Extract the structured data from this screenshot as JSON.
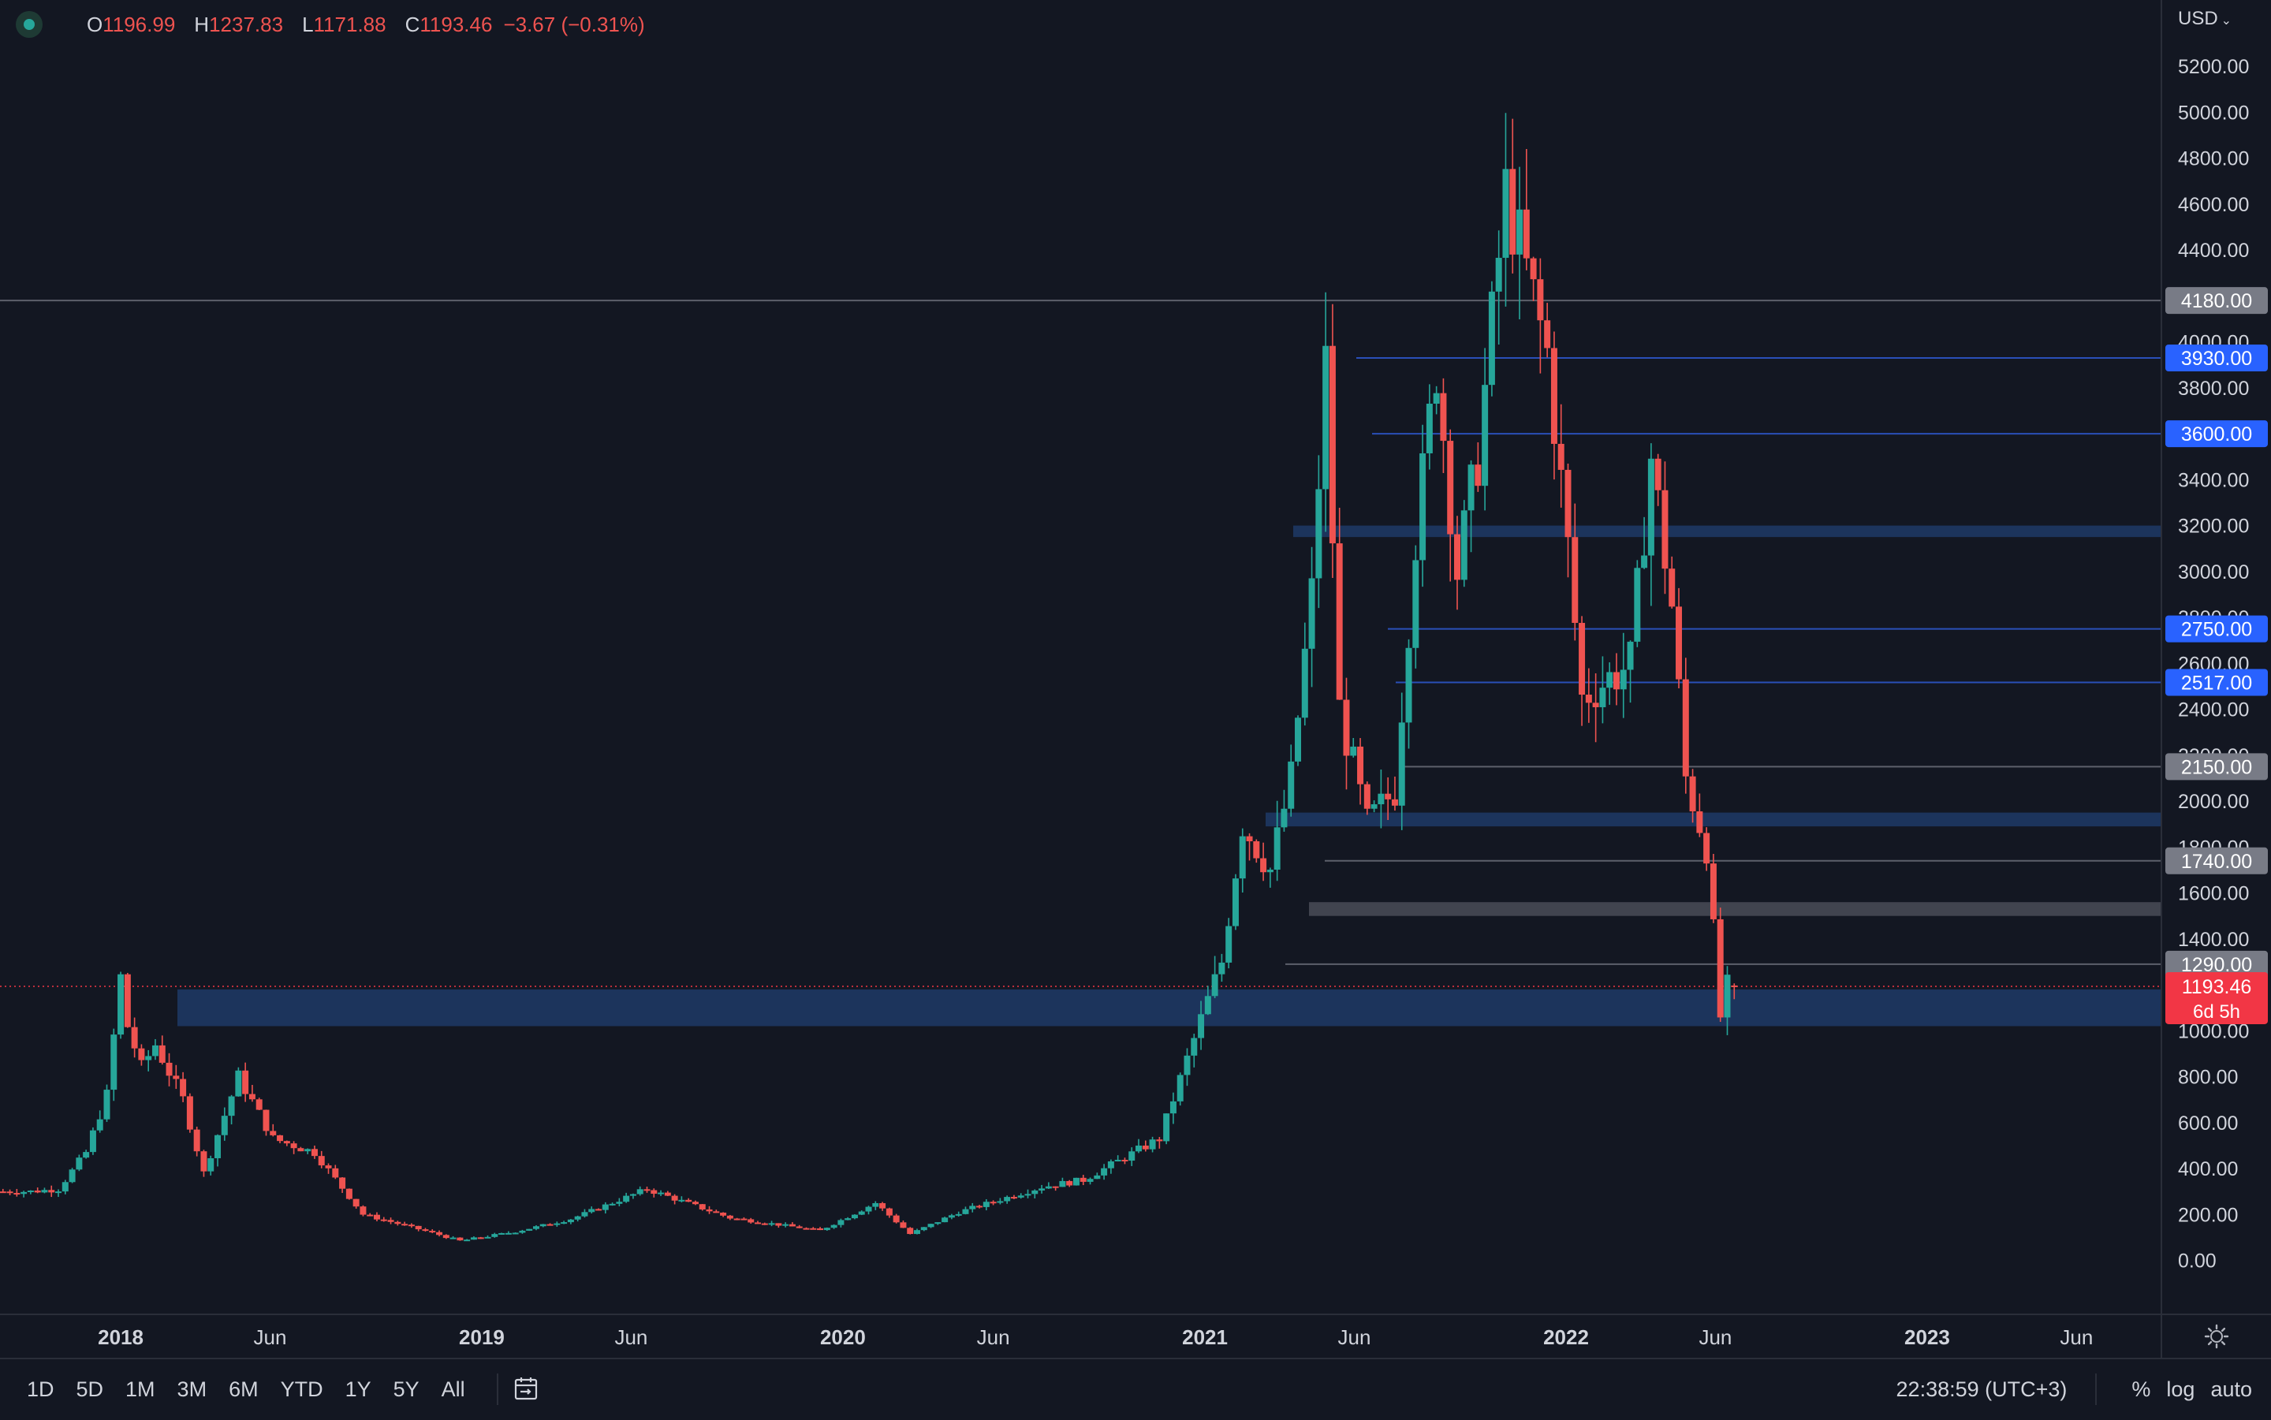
{
  "header": {
    "ohlc": {
      "o_label": "O",
      "o_value": "1196.99",
      "h_label": "H",
      "h_value": "1237.83",
      "l_label": "L",
      "l_value": "1171.88",
      "c_label": "C",
      "c_value": "1193.46",
      "change": "−3.67 (−0.31%)"
    },
    "currency": "USD"
  },
  "price_axis": {
    "ticks": [
      "5200.00",
      "5000.00",
      "4800.00",
      "4600.00",
      "4400.00",
      "4000.00",
      "3800.00",
      "3400.00",
      "3200.00",
      "3000.00",
      "2800.00",
      "2600.00",
      "2400.00",
      "2200.00",
      "2000.00",
      "1800.00",
      "1600.00",
      "1400.00",
      "1000.00",
      "800.00",
      "600.00",
      "400.00",
      "200.00",
      "0.00"
    ],
    "badges": [
      {
        "value": "4180.00",
        "color": "#787b86"
      },
      {
        "value": "3930.00",
        "color": "#2962ff"
      },
      {
        "value": "3600.00",
        "color": "#2962ff"
      },
      {
        "value": "2750.00",
        "color": "#2962ff"
      },
      {
        "value": "2517.00",
        "color": "#2962ff"
      },
      {
        "value": "2150.00",
        "color": "#787b86"
      },
      {
        "value": "1740.00",
        "color": "#787b86"
      },
      {
        "value": "1290.00",
        "color": "#787b86"
      }
    ],
    "current": {
      "value": "1193.46",
      "countdown": "6d 5h",
      "color": "#f23645"
    }
  },
  "time_axis": {
    "labels": [
      "2018",
      "Jun",
      "2019",
      "Jun",
      "2020",
      "Jun",
      "2021",
      "Jun",
      "2022",
      "Jun",
      "2023",
      "Jun"
    ],
    "bold": [
      true,
      false,
      true,
      false,
      true,
      false,
      true,
      false,
      true,
      false,
      true,
      false
    ]
  },
  "bottom_bar": {
    "ranges": [
      "1D",
      "5D",
      "1M",
      "3M",
      "6M",
      "YTD",
      "1Y",
      "5Y",
      "All"
    ],
    "clock": "22:38:59 (UTC+3)",
    "percent": "%",
    "log": "log",
    "auto": "auto"
  },
  "colors": {
    "background": "#131722",
    "up": "#26a69a",
    "down": "#ef5350",
    "zone_blue": "#1f3a66",
    "zone_gray": "#4a4c57"
  },
  "chart_data": {
    "type": "candlestick",
    "timeframe": "weekly",
    "x_range": [
      "2017-09-01",
      "2023-08-25"
    ],
    "ylim": [
      -60,
      5300
    ],
    "anchors": [
      [
        "2017-09-04",
        300
      ],
      [
        "2017-10-09",
        300
      ],
      [
        "2017-11-06",
        310
      ],
      [
        "2017-12-04",
        470
      ],
      [
        "2017-12-25",
        720
      ],
      [
        "2018-01-08",
        1230
      ],
      [
        "2018-01-15",
        1020
      ],
      [
        "2018-01-29",
        840
      ],
      [
        "2018-02-12",
        940
      ],
      [
        "2018-03-12",
        700
      ],
      [
        "2018-04-02",
        380
      ],
      [
        "2018-05-07",
        800
      ],
      [
        "2018-06-11",
        530
      ],
      [
        "2018-07-23",
        470
      ],
      [
        "2018-09-10",
        200
      ],
      [
        "2018-11-19",
        120
      ],
      [
        "2018-12-17",
        85
      ],
      [
        "2019-02-11",
        125
      ],
      [
        "2019-04-08",
        180
      ],
      [
        "2019-06-24",
        310
      ],
      [
        "2019-09-16",
        185
      ],
      [
        "2019-12-16",
        130
      ],
      [
        "2020-02-10",
        250
      ],
      [
        "2020-03-16",
        115
      ],
      [
        "2020-05-04",
        210
      ],
      [
        "2020-07-27",
        320
      ],
      [
        "2020-09-07",
        350
      ],
      [
        "2020-11-23",
        530
      ],
      [
        "2021-01-04",
        1050
      ],
      [
        "2021-01-25",
        1300
      ],
      [
        "2021-02-15",
        1900
      ],
      [
        "2021-03-15",
        1700
      ],
      [
        "2021-04-05",
        2100
      ],
      [
        "2021-04-26",
        2900
      ],
      [
        "2021-05-10",
        3900
      ],
      [
        "2021-05-24",
        2400
      ],
      [
        "2021-06-21",
        1900
      ],
      [
        "2021-07-19",
        2050
      ],
      [
        "2021-08-09",
        3150
      ],
      [
        "2021-08-30",
        3900
      ],
      [
        "2021-09-20",
        3000
      ],
      [
        "2021-10-11",
        3500
      ],
      [
        "2021-11-08",
        4650
      ],
      [
        "2021-11-29",
        4300
      ],
      [
        "2021-12-20",
        3950
      ],
      [
        "2022-01-10",
        3100
      ],
      [
        "2022-01-24",
        2450
      ],
      [
        "2022-03-14",
        2600
      ],
      [
        "2022-04-04",
        3500
      ],
      [
        "2022-04-25",
        2850
      ],
      [
        "2022-05-09",
        2100
      ],
      [
        "2022-05-30",
        1800
      ],
      [
        "2022-06-13",
        1060
      ],
      [
        "2022-06-20",
        1195
      ]
    ],
    "levels": [
      4180,
      3930,
      3600,
      3170,
      2750,
      2517,
      2150,
      1920,
      1740,
      1530,
      1290,
      1193.46
    ],
    "zones": [
      {
        "from": 3150,
        "to": 3200,
        "color": "blue"
      },
      {
        "from": 1890,
        "to": 1950,
        "color": "blue"
      },
      {
        "from": 1500,
        "to": 1560,
        "color": "gray"
      },
      {
        "from": 1020,
        "to": 1180,
        "color": "blue"
      }
    ]
  }
}
